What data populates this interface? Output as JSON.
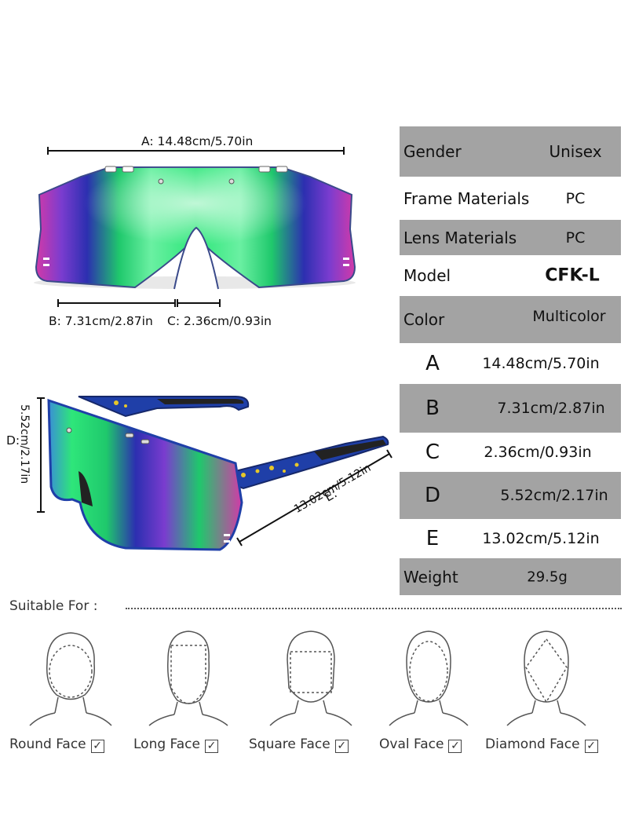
{
  "dimensions": {
    "a": "A: 14.48cm/5.70in",
    "b": "B: 7.31cm/2.87in",
    "c": "C: 2.36cm/0.93in",
    "d": "D:",
    "d_val": "5.52cm/2.17in",
    "e": "E:",
    "e_val": "13.02cm/5.12in"
  },
  "specs": [
    {
      "key": "Gender",
      "value": "Unisex"
    },
    {
      "key": "Frame Materials",
      "value": "PC"
    },
    {
      "key": "Lens Materials",
      "value": "PC"
    },
    {
      "key": "Model",
      "value": "CFK-L"
    },
    {
      "key": "Color",
      "value": "Multicolor"
    },
    {
      "key": "A",
      "value": "14.48cm/5.70in"
    },
    {
      "key": "B",
      "value": "7.31cm/2.87in"
    },
    {
      "key": "C",
      "value": "2.36cm/0.93in"
    },
    {
      "key": "D",
      "value": "5.52cm/2.17in"
    },
    {
      "key": "E",
      "value": "13.02cm/5.12in"
    },
    {
      "key": "Weight",
      "value": "29.5g"
    }
  ],
  "suitable": {
    "title": "Suitable For :",
    "faces": [
      {
        "label": "Round Face",
        "check": "✓"
      },
      {
        "label": "Long Face",
        "check": "✓"
      },
      {
        "label": "Square Face",
        "check": "✓"
      },
      {
        "label": "Oval Face",
        "check": "✓"
      },
      {
        "label": "Diamond Face",
        "check": "✓"
      }
    ]
  },
  "colors": {
    "lens_green": "#2ee67a",
    "lens_purple": "#7a3ccf",
    "lens_magenta": "#d23aa8",
    "frame_blue": "#1f3fa8",
    "speckle_yellow": "#e6c62a",
    "table_gray": "#a3a3a3"
  }
}
